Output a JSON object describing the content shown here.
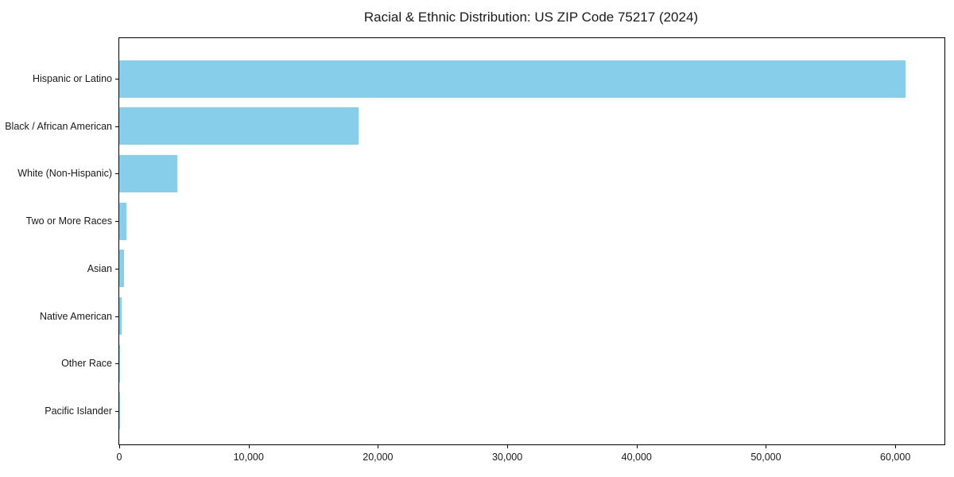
{
  "chart_data": {
    "type": "bar",
    "orientation": "horizontal",
    "title": "Racial & Ethnic Distribution: US ZIP Code 75217 (2024)",
    "categories": [
      "Hispanic or Latino",
      "Black / African American",
      "White (Non-Hispanic)",
      "Two or More Races",
      "Asian",
      "Native American",
      "Other Race",
      "Pacific Islander"
    ],
    "values": [
      60800,
      18500,
      4500,
      550,
      370,
      160,
      40,
      10
    ],
    "xlabel": "",
    "ylabel": "",
    "xlim": [
      0,
      63800
    ],
    "x_ticks": [
      0,
      10000,
      20000,
      30000,
      40000,
      50000,
      60000
    ],
    "x_tick_labels": [
      "0",
      "10,000",
      "20,000",
      "30,000",
      "40,000",
      "50,000",
      "60,000"
    ],
    "bar_color": "#87CEEB",
    "spine_color": "#000000",
    "background_color": "#ffffff",
    "grid": false,
    "legend": false
  }
}
